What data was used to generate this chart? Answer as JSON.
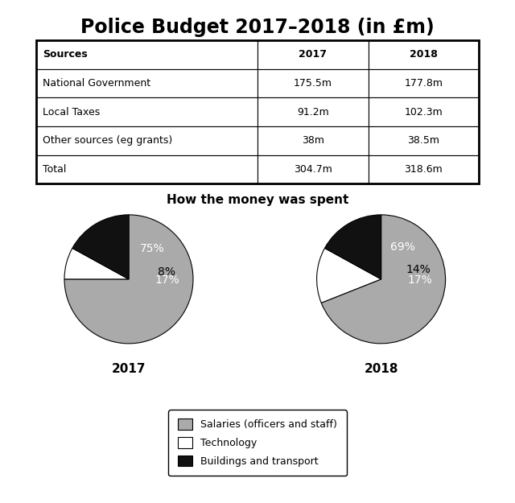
{
  "title": "Police Budget 2017–2018 (in £m)",
  "table": {
    "headers": [
      "Sources",
      "2017",
      "2018"
    ],
    "rows": [
      [
        "National Government",
        "175.5m",
        "177.8m"
      ],
      [
        "Local Taxes",
        "91.2m",
        "102.3m"
      ],
      [
        "Other sources (eg grants)",
        "38m",
        "38.5m"
      ],
      [
        "Total",
        "304.7m",
        "318.6m"
      ]
    ]
  },
  "pie_title": "How the money was spent",
  "pie_2017": {
    "label": "2017",
    "values": [
      75,
      8,
      17
    ],
    "pct_labels": [
      "75%",
      "8%",
      "17%"
    ],
    "colors": [
      "#aaaaaa",
      "#ffffff",
      "#111111"
    ],
    "startangle": 90
  },
  "pie_2018": {
    "label": "2018",
    "values": [
      69,
      14,
      17
    ],
    "pct_labels": [
      "69%",
      "14%",
      "17%"
    ],
    "colors": [
      "#aaaaaa",
      "#ffffff",
      "#111111"
    ],
    "startangle": 90
  },
  "legend_labels": [
    "Salaries (officers and staff)",
    "Technology",
    "Buildings and transport"
  ],
  "legend_colors": [
    "#aaaaaa",
    "#ffffff",
    "#111111"
  ],
  "background_color": "#ffffff",
  "title_fontsize": 17,
  "table_fontsize": 9,
  "pie_title_fontsize": 11,
  "pie_label_fontsize": 10,
  "year_label_fontsize": 11,
  "legend_fontsize": 9
}
